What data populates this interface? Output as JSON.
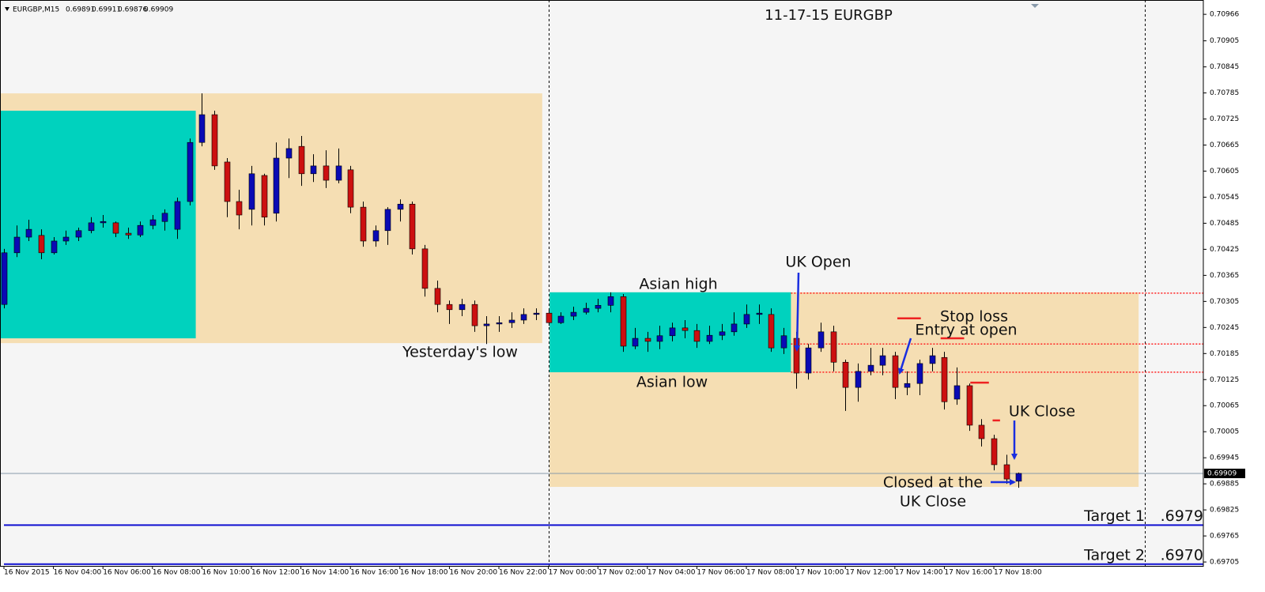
{
  "chart_data": {
    "type": "candlestick",
    "title": "11-17-15 EURGBP",
    "symbol": "EURGBP,M15",
    "up_color": "#0a0ab4",
    "down_color": "#cc1010",
    "open": [
      0.70298,
      0.70417,
      0.70453,
      0.70457,
      0.70417,
      0.70444,
      0.70453,
      0.70468,
      0.70486,
      0.70486,
      0.70462,
      0.70458,
      0.7048,
      0.70489,
      0.70471,
      0.70535,
      0.70671,
      0.70735,
      0.70626,
      0.70535,
      0.70517,
      0.70595,
      0.70508,
      0.70635,
      0.70662,
      0.70599,
      0.70617,
      0.70584,
      0.70608,
      0.70522,
      0.70444,
      0.70468,
      0.70517,
      0.70529,
      0.70426,
      0.70335,
      0.70298,
      0.70286,
      0.70298,
      0.70249,
      0.70253,
      0.70256,
      0.70262,
      0.70275,
      0.70278,
      0.70256,
      0.70271,
      0.7028,
      0.70289,
      0.70296,
      0.70316,
      0.70202,
      0.7022,
      0.70213,
      0.70226,
      0.70244,
      0.70238,
      0.70213,
      0.70227,
      0.70235,
      0.70253,
      0.70275,
      0.70275,
      0.70198,
      0.7022,
      0.7014,
      0.70198,
      0.70235,
      0.70165,
      0.70107,
      0.70144,
      0.70158,
      0.7018,
      0.70107,
      0.70116,
      0.70162,
      0.70176,
      0.7008,
      0.70111,
      0.7002,
      0.69989,
      0.69929,
      0.69891
    ],
    "high": [
      0.70426,
      0.7048,
      0.70493,
      0.70471,
      0.70453,
      0.70468,
      0.70475,
      0.70499,
      0.70504,
      0.70489,
      0.70475,
      0.70489,
      0.70504,
      0.70517,
      0.70544,
      0.7068,
      0.70784,
      0.70744,
      0.70635,
      0.70562,
      0.70617,
      0.70599,
      0.70671,
      0.7068,
      0.70686,
      0.70644,
      0.70653,
      0.70657,
      0.70617,
      0.70535,
      0.7048,
      0.70522,
      0.7054,
      0.70535,
      0.70435,
      0.70353,
      0.70307,
      0.70311,
      0.70307,
      0.70271,
      0.70271,
      0.7028,
      0.70289,
      0.70289,
      0.70286,
      0.7028,
      0.70293,
      0.70302,
      0.70311,
      0.70326,
      0.70322,
      0.70244,
      0.70235,
      0.70249,
      0.70256,
      0.70262,
      0.70253,
      0.70249,
      0.70253,
      0.7028,
      0.70298,
      0.70298,
      0.70289,
      0.70244,
      0.70235,
      0.70207,
      0.70256,
      0.70249,
      0.70171,
      0.70162,
      0.70198,
      0.70198,
      0.70189,
      0.70144,
      0.70171,
      0.70198,
      0.70189,
      0.70153,
      0.70116,
      0.70034,
      0.69998,
      0.69952,
      0.69911
    ],
    "low": [
      0.70289,
      0.70407,
      0.70444,
      0.70402,
      0.70413,
      0.70435,
      0.70444,
      0.70462,
      0.70475,
      0.70453,
      0.70449,
      0.70453,
      0.70471,
      0.70468,
      0.70449,
      0.70526,
      0.70662,
      0.70608,
      0.70499,
      0.70471,
      0.7048,
      0.7048,
      0.70489,
      0.70589,
      0.70571,
      0.7058,
      0.70566,
      0.70577,
      0.70508,
      0.70431,
      0.70431,
      0.70435,
      0.70489,
      0.70413,
      0.70316,
      0.7028,
      0.70253,
      0.70271,
      0.70235,
      0.70207,
      0.70235,
      0.70244,
      0.70253,
      0.70262,
      0.70249,
      0.70253,
      0.70262,
      0.70275,
      0.7028,
      0.7028,
      0.70189,
      0.70195,
      0.70189,
      0.70195,
      0.70213,
      0.7022,
      0.70198,
      0.70207,
      0.70216,
      0.70226,
      0.70244,
      0.70253,
      0.70189,
      0.70184,
      0.70104,
      0.70125,
      0.70189,
      0.70144,
      0.70053,
      0.70074,
      0.70135,
      0.70135,
      0.7008,
      0.70089,
      0.70089,
      0.70144,
      0.70056,
      0.70067,
      0.70007,
      0.69971,
      0.69916,
      0.69885,
      0.69876
    ],
    "close": [
      0.70417,
      0.70453,
      0.70471,
      0.70417,
      0.70444,
      0.70453,
      0.70468,
      0.70486,
      0.70489,
      0.70462,
      0.70458,
      0.7048,
      0.70493,
      0.70508,
      0.70535,
      0.70671,
      0.70735,
      0.70617,
      0.70535,
      0.70504,
      0.70599,
      0.70499,
      0.70635,
      0.70657,
      0.70599,
      0.70617,
      0.70584,
      0.70617,
      0.70522,
      0.70444,
      0.70468,
      0.70517,
      0.70529,
      0.70426,
      0.70335,
      0.70298,
      0.70286,
      0.70298,
      0.70249,
      0.70253,
      0.70256,
      0.70262,
      0.70275,
      0.70278,
      0.70256,
      0.70271,
      0.7028,
      0.70289,
      0.70296,
      0.70316,
      0.70202,
      0.7022,
      0.70213,
      0.70226,
      0.70244,
      0.70238,
      0.70213,
      0.70227,
      0.70235,
      0.70253,
      0.70275,
      0.70278,
      0.70198,
      0.70226,
      0.7014,
      0.70198,
      0.70235,
      0.70165,
      0.70107,
      0.70144,
      0.70158,
      0.7018,
      0.70107,
      0.70116,
      0.70162,
      0.7018,
      0.70074,
      0.70111,
      0.7002,
      0.69989,
      0.69929,
      0.69896,
      0.69909
    ],
    "xlim": [
      -0.32,
      96.93
    ],
    "ylim": [
      0.69696,
      0.70999
    ],
    "xticks": [
      {
        "value": 0,
        "label": "16 Nov 2015"
      },
      {
        "value": 4,
        "label": "16 Nov 04:00"
      },
      {
        "value": 8,
        "label": "16 Nov 06:00"
      },
      {
        "value": 12,
        "label": "16 Nov 08:00"
      },
      {
        "value": 16,
        "label": "16 Nov 10:00"
      },
      {
        "value": 20,
        "label": "16 Nov 12:00"
      },
      {
        "value": 24,
        "label": "16 Nov 14:00"
      },
      {
        "value": 28,
        "label": "16 Nov 16:00"
      },
      {
        "value": 32,
        "label": "16 Nov 18:00"
      },
      {
        "value": 36,
        "label": "16 Nov 20:00"
      },
      {
        "value": 40,
        "label": "16 Nov 22:00"
      },
      {
        "value": 44,
        "label": "17 Nov 00:00"
      },
      {
        "value": 48,
        "label": "17 Nov 02:00"
      },
      {
        "value": 52,
        "label": "17 Nov 04:00"
      },
      {
        "value": 56,
        "label": "17 Nov 06:00"
      },
      {
        "value": 60,
        "label": "17 Nov 08:00"
      },
      {
        "value": 64,
        "label": "17 Nov 10:00"
      },
      {
        "value": 68,
        "label": "17 Nov 12:00"
      },
      {
        "value": 72,
        "label": "17 Nov 14:00"
      },
      {
        "value": 76,
        "label": "17 Nov 16:00"
      },
      {
        "value": 80,
        "label": "17 Nov 18:00"
      }
    ],
    "yticks": [
      0.70966,
      0.70905,
      0.70845,
      0.70785,
      0.70725,
      0.70665,
      0.70605,
      0.70545,
      0.70485,
      0.70425,
      0.70365,
      0.70305,
      0.70245,
      0.70185,
      0.70125,
      0.70065,
      0.70005,
      0.69945,
      0.69885,
      0.69825,
      0.69765,
      0.69705
    ],
    "current_price": 0.69909,
    "separators": [
      44,
      92.2
    ],
    "zones": [
      {
        "x": [
          -0.32,
          43.5
        ],
        "y": [
          0.70209,
          0.70784
        ],
        "color": "#f5deb3"
      },
      {
        "x": [
          -0.32,
          15.5
        ],
        "y": [
          0.7022,
          0.70744
        ],
        "color": "#00d2be"
      },
      {
        "x": [
          44.1,
          91.7
        ],
        "y": [
          0.69878,
          0.70326
        ],
        "color": "#f5deb3"
      },
      {
        "x": [
          44.1,
          63.6
        ],
        "y": [
          0.70142,
          0.70326
        ],
        "color": "#00d2be"
      }
    ],
    "levels": [
      0.70324,
      0.70207,
      0.70142
    ],
    "level_start": 63.6,
    "stop_levels": [
      {
        "value": 0.70266,
        "x": [
          72.2,
          74.1
        ]
      },
      {
        "value": 0.7022,
        "x": [
          75.7,
          77.6
        ]
      },
      {
        "value": 0.70118,
        "x": [
          78.1,
          79.6
        ]
      },
      {
        "value": 0.70031,
        "x": [
          79.9,
          80.5
        ]
      }
    ],
    "targets": [
      {
        "name": "Target 1",
        "value": 0.6979,
        "label": ".6979"
      },
      {
        "name": "Target 2",
        "value": 0.697,
        "label": ".6970"
      }
    ],
    "annotations": [
      "Asian high",
      "Asian low",
      "Yesterday's low",
      "UK Open",
      "Stop loss",
      "Entry at open",
      "UK Close",
      "Closed at the",
      "UK Close"
    ]
  }
}
